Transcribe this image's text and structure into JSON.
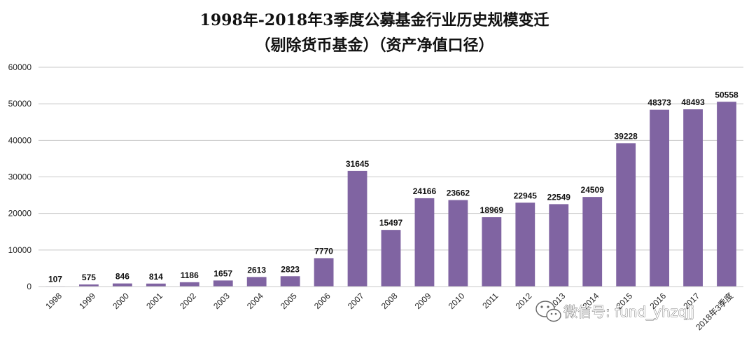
{
  "chart_data": {
    "type": "bar",
    "title": "1998年-2018年3季度公募基金行业历史规模变迁",
    "subtitle": "（剔除货币基金）（资产净值口径）",
    "categories": [
      "1998",
      "1999",
      "2000",
      "2001",
      "2002",
      "2003",
      "2004",
      "2005",
      "2006",
      "2007",
      "2008",
      "2009",
      "2010",
      "2011",
      "2012",
      "2013",
      "2014",
      "2015",
      "2016",
      "2017",
      "2018年3季度"
    ],
    "values": [
      107,
      575,
      846,
      814,
      1186,
      1657,
      2613,
      2823,
      7770,
      31645,
      15497,
      24166,
      23662,
      18969,
      22945,
      22549,
      24509,
      39228,
      48373,
      48493,
      50558
    ],
    "ylim": [
      0,
      60000
    ],
    "yticks": [
      0,
      10000,
      20000,
      30000,
      40000,
      50000,
      60000
    ],
    "grid": true,
    "legend": "none",
    "bar_color": "#8064a2"
  },
  "watermark": {
    "icon": "wechat-icon",
    "text": "微信号: fund_yhzqjj"
  }
}
